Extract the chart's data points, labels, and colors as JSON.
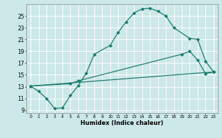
{
  "xlabel": "Humidex (Indice chaleur)",
  "xlim": [
    -0.5,
    23.5
  ],
  "ylim": [
    8.5,
    27
  ],
  "xticks": [
    0,
    1,
    2,
    3,
    4,
    5,
    6,
    7,
    8,
    9,
    10,
    11,
    12,
    13,
    14,
    15,
    16,
    17,
    18,
    19,
    20,
    21,
    22,
    23
  ],
  "yticks": [
    9,
    11,
    13,
    15,
    17,
    19,
    21,
    23,
    25
  ],
  "color": "#1a7a6e",
  "bg_color": "#cce8e8",
  "line1_x": [
    0,
    1,
    2,
    3,
    4,
    5,
    6,
    7,
    8,
    10,
    11,
    12,
    13,
    14,
    15,
    16,
    17,
    18,
    20,
    21,
    22,
    23
  ],
  "line1_y": [
    13.1,
    12.2,
    11.0,
    9.3,
    9.4,
    11.5,
    13.2,
    15.3,
    18.5,
    20.0,
    22.2,
    24.0,
    25.5,
    26.2,
    26.3,
    25.8,
    25.0,
    23.0,
    21.2,
    21.0,
    17.3,
    15.5
  ],
  "line2_x": [
    0,
    5,
    6,
    19,
    20,
    21,
    22,
    23
  ],
  "line2_y": [
    13.1,
    13.5,
    14.0,
    18.5,
    19.0,
    17.5,
    15.2,
    15.5
  ],
  "line3_x": [
    0,
    23
  ],
  "line3_y": [
    13.1,
    15.5
  ]
}
